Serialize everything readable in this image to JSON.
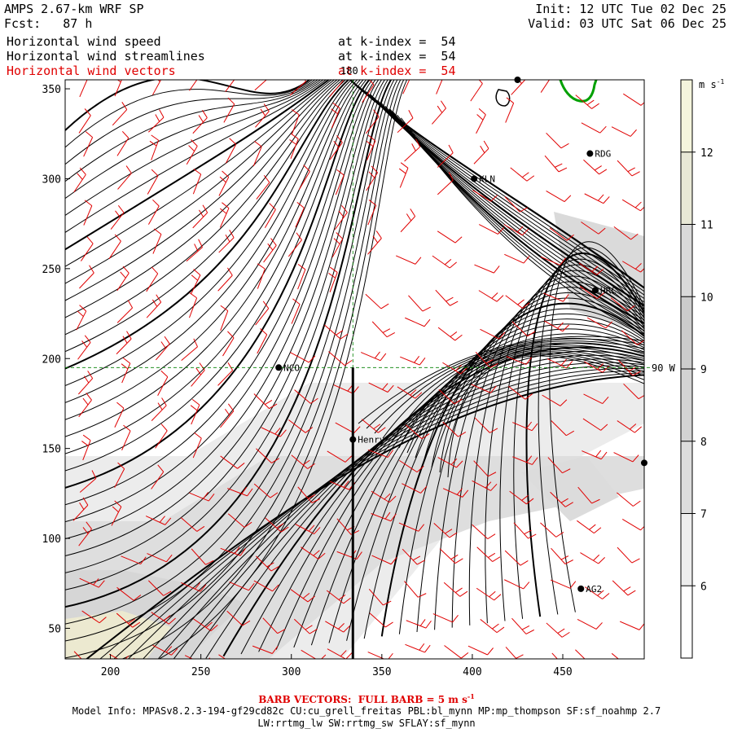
{
  "header": {
    "model": "AMPS 2.67-km WRF SP",
    "fcst": "Fcst:   87 h",
    "init": "Init: 12 UTC Tue 02 Dec 25",
    "valid": "Valid: 03 UTC Sat 06 Dec 25"
  },
  "fields": [
    {
      "name": "Horizontal wind speed",
      "level": "at k-index =  54",
      "color": "#000000"
    },
    {
      "name": "Horizontal wind streamlines",
      "level": "at k-index =  54",
      "color": "#000000"
    },
    {
      "name": "Horizontal wind vectors",
      "level": "at k-index =  54",
      "color": "#e00000"
    }
  ],
  "footer": {
    "barb": "BARB VECTORS:  FULL BARB = 5 m s",
    "barb_sup": "-1",
    "model_info": "Model Info: MPASv8.2.3-194-gf29cd82c CU:cu_grell_freitas PBL:bl_mynn MP:mp_thompson SF:sf_noahmp 2.7",
    "model_info2": "LW:rrtmg_lw SW:rrtmg_sw SFLAY:sf_mynn"
  },
  "colorbar": {
    "unit": "m s",
    "unit_sup": "-1",
    "ticks": [
      6,
      7,
      8,
      9,
      10,
      11,
      12
    ],
    "range": [
      5,
      13
    ],
    "colors": [
      "#ffffff",
      "#ededed",
      "#dcdcdc",
      "#d3d3d3",
      "#cccccc",
      "#d9d9d9",
      "#e8e8d6",
      "#f4f4dc"
    ]
  },
  "stations": [
    {
      "name": "NCO",
      "x": 293,
      "y": 195
    },
    {
      "name": "Henry",
      "x": 334,
      "y": 155
    },
    {
      "name": "KLN",
      "x": 401,
      "y": 300
    },
    {
      "name": "RDG",
      "x": 465,
      "y": 314
    },
    {
      "name": "HRC",
      "x": 468,
      "y": 238
    },
    {
      "name": "AG2",
      "x": 460,
      "y": 72
    },
    {
      "name": "",
      "x": 495,
      "y": 142
    },
    {
      "name": "",
      "x": 425,
      "y": 355
    }
  ],
  "map_labels": {
    "meridian": "180",
    "parallel": "90 W"
  },
  "chart_data": {
    "type": "heatmap",
    "title": "Horizontal wind speed / streamlines / vectors at k-index = 54",
    "xlim": [
      175,
      495
    ],
    "ylim": [
      33,
      355
    ],
    "xticks": [
      200,
      250,
      300,
      350,
      400,
      450
    ],
    "yticks": [
      50,
      100,
      150,
      200,
      250,
      300,
      350
    ],
    "reference_lines": {
      "x": 334,
      "y": 195
    },
    "cross_section": {
      "x": 334,
      "y_from": 33,
      "y_to": 195
    }
  }
}
